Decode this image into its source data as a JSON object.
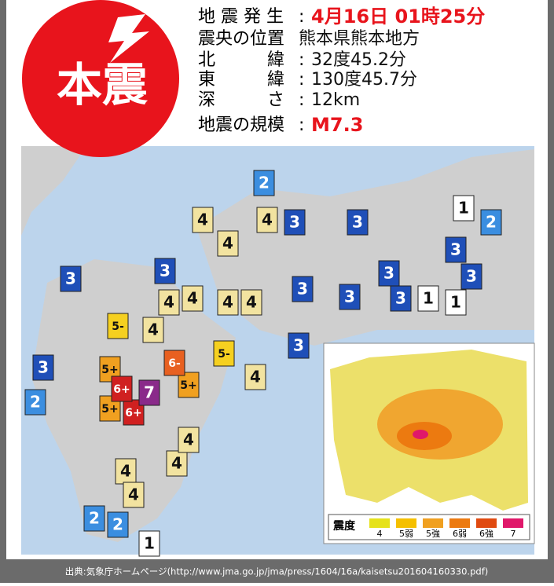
{
  "header": {
    "badge": "本震",
    "rows": [
      {
        "label": "地 震 発 生",
        "sep": ":",
        "value": "4月16日 01時25分"
      },
      {
        "label": "震央の位置",
        "value": "熊本県熊本地方"
      },
      {
        "label": "北　　　緯",
        "sep": ":",
        "value": "32度45.2分"
      },
      {
        "label": "東　　　緯",
        "sep": ":",
        "value": "130度45.7分"
      },
      {
        "label": "深　　　さ",
        "sep": ":",
        "value": "12km"
      },
      {
        "label": "地震の規模",
        "sep": ":",
        "value": "M7.3"
      }
    ]
  },
  "map": {
    "palette": {
      "1": "#ffffff",
      "2": "#3b8ee0",
      "3": "#1f4fb8",
      "4": "#f2e3a0",
      "5-": "#f5d020",
      "5+": "#f0a020",
      "6-": "#e86020",
      "6+": "#d02020",
      "7": "#8a2a8a"
    },
    "stations": [
      "2",
      "2",
      "2",
      "2",
      "2",
      "3",
      "3",
      "3",
      "3",
      "3",
      "3",
      "3",
      "3",
      "3",
      "3",
      "3",
      "3",
      "4",
      "4",
      "4",
      "4",
      "4",
      "4",
      "4",
      "4",
      "4",
      "4",
      "4",
      "4",
      "4",
      "1",
      "1",
      "1",
      "1",
      "5-",
      "5-",
      "5+",
      "5+",
      "5+",
      "6-",
      "6+",
      "6+",
      "7"
    ],
    "inset": {
      "legend_title": "震度",
      "legend": [
        {
          "label": "4",
          "color": "#e6e21a"
        },
        {
          "label": "5弱",
          "color": "#f5c000"
        },
        {
          "label": "5強",
          "color": "#f0a020"
        },
        {
          "label": "6弱",
          "color": "#ec7a10"
        },
        {
          "label": "6強",
          "color": "#e04a10"
        },
        {
          "label": "7",
          "color": "#e0186a"
        }
      ]
    }
  },
  "footer": {
    "source": "出典:気象庁ホームページ(http://www.jma.go.jp/jma/press/1604/16a/kaisetsu201604160330.pdf)"
  }
}
